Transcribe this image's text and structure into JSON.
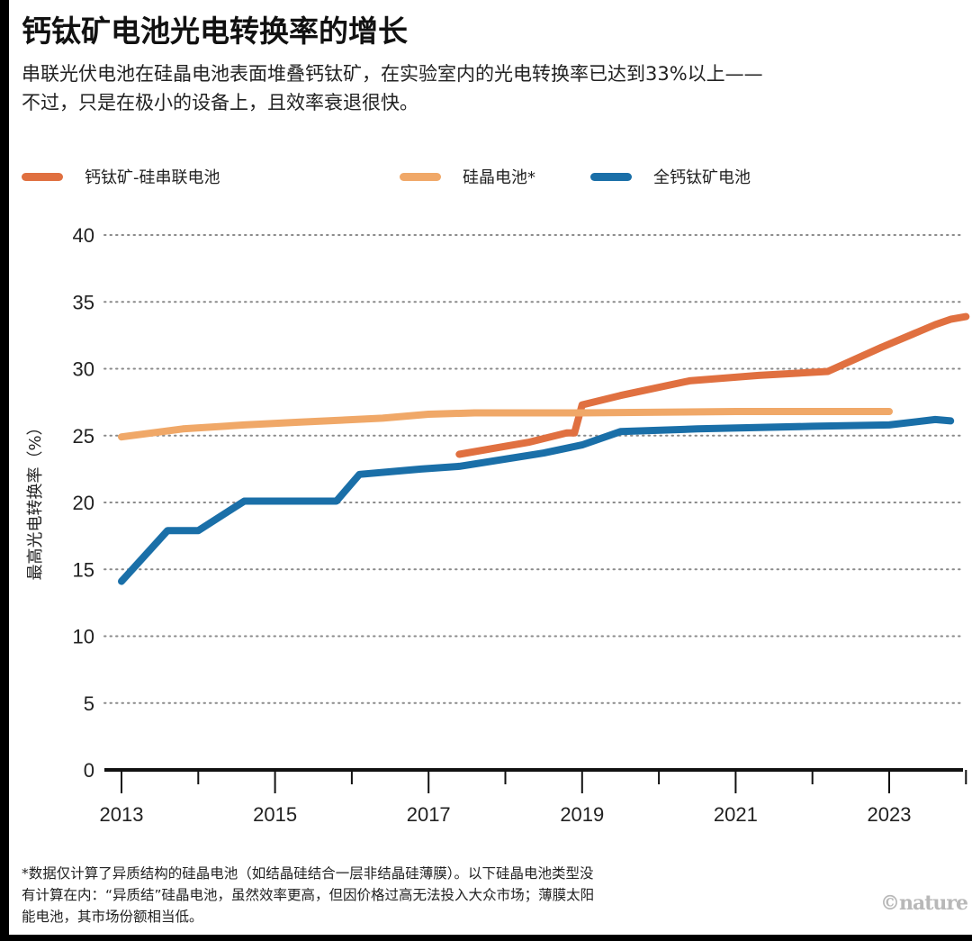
{
  "title": "钙钛矿电池光电转换率的增长",
  "subtitle_lines": [
    "串联光伏电池在硅晶电池表面堆叠钙钛矿，在实验室内的光电转换率已达到33%以上——",
    "不过，只是在极小的设备上，且效率衰退很快。"
  ],
  "footnote_lines": [
    "*数据仅计算了异质结构的硅晶电池（如结晶硅结合一层非结晶硅薄膜）。以下硅晶电池类型没",
    "有计算在内：“异质结”硅晶电池，虽然效率更高，但因价格过高无法投入大众市场；薄膜太阳",
    "能电池，其市场份额相当低。"
  ],
  "credit": "©nature",
  "chart_data": {
    "type": "line",
    "title": "钙钛矿电池光电转换率的增长",
    "xlabel": "",
    "ylabel": "最高光电转换率（%）",
    "xlim": [
      2013,
      2024
    ],
    "ylim": [
      0,
      40
    ],
    "yticks": [
      0,
      5,
      10,
      15,
      20,
      25,
      30,
      35,
      40
    ],
    "xticks": [
      2013,
      2015,
      2017,
      2019,
      2021,
      2023
    ],
    "grid": "horizontal-dotted",
    "legend_position": "top",
    "series": [
      {
        "name": "钙钛矿-硅串联电池",
        "color": "#e07040",
        "points": [
          [
            2017.4,
            23.6
          ],
          [
            2018.3,
            24.5
          ],
          [
            2018.8,
            25.2
          ],
          [
            2018.9,
            25.2
          ],
          [
            2019.0,
            27.3
          ],
          [
            2019.5,
            28.0
          ],
          [
            2020.4,
            29.1
          ],
          [
            2021.3,
            29.5
          ],
          [
            2022.2,
            29.8
          ],
          [
            2022.9,
            31.6
          ],
          [
            2023.6,
            33.3
          ],
          [
            2023.8,
            33.7
          ],
          [
            2024.0,
            33.9
          ]
        ]
      },
      {
        "name": "硅晶电池*",
        "color": "#f0a868",
        "points": [
          [
            2013.0,
            24.9
          ],
          [
            2013.8,
            25.5
          ],
          [
            2014.6,
            25.8
          ],
          [
            2015.3,
            26.0
          ],
          [
            2016.4,
            26.3
          ],
          [
            2017.0,
            26.6
          ],
          [
            2017.6,
            26.7
          ],
          [
            2019.0,
            26.7
          ],
          [
            2021.0,
            26.8
          ],
          [
            2023.0,
            26.8
          ]
        ]
      },
      {
        "name": "全钙钛矿电池",
        "color": "#1a6fa8",
        "points": [
          [
            2013.0,
            14.1
          ],
          [
            2013.6,
            17.9
          ],
          [
            2014.0,
            17.9
          ],
          [
            2014.6,
            20.1
          ],
          [
            2015.8,
            20.1
          ],
          [
            2016.1,
            22.1
          ],
          [
            2016.9,
            22.5
          ],
          [
            2017.4,
            22.7
          ],
          [
            2018.5,
            23.7
          ],
          [
            2019.0,
            24.3
          ],
          [
            2019.5,
            25.3
          ],
          [
            2020.5,
            25.5
          ],
          [
            2022.0,
            25.7
          ],
          [
            2023.0,
            25.8
          ],
          [
            2023.6,
            26.2
          ],
          [
            2023.8,
            26.1
          ]
        ]
      }
    ]
  }
}
